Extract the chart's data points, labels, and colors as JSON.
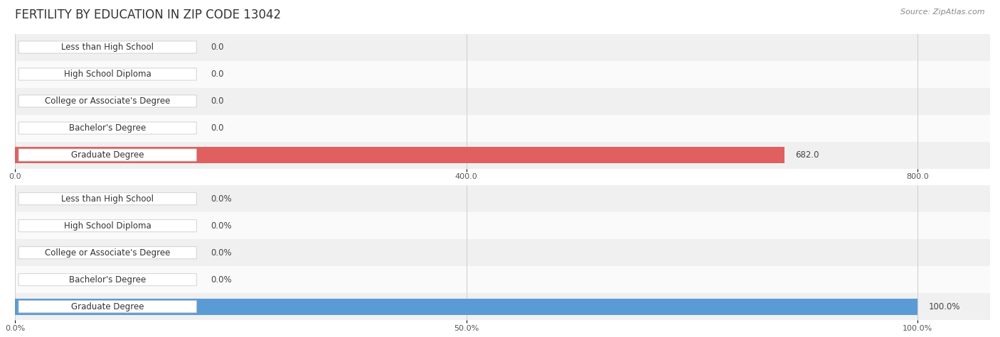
{
  "title": "FERTILITY BY EDUCATION IN ZIP CODE 13042",
  "source": "Source: ZipAtlas.com",
  "categories": [
    "Less than High School",
    "High School Diploma",
    "College or Associate's Degree",
    "Bachelor's Degree",
    "Graduate Degree"
  ],
  "values_abs": [
    0.0,
    0.0,
    0.0,
    0.0,
    682.0
  ],
  "values_pct": [
    0.0,
    0.0,
    0.0,
    0.0,
    100.0
  ],
  "xlim_abs": [
    0,
    800
  ],
  "xlim_pct": [
    0,
    100
  ],
  "xticks_abs": [
    0.0,
    400.0,
    800.0
  ],
  "xticks_pct": [
    0.0,
    50.0,
    100.0
  ],
  "bar_color_normal": "#f0b0ae",
  "bar_color_highlight": "#e06060",
  "bar_color_blue_normal": "#a8c8e8",
  "bar_color_blue_highlight": "#5b9bd5",
  "label_bg_color": "#ffffff",
  "row_bg_even": "#f0f0f0",
  "row_bg_odd": "#fafafa",
  "grid_color": "#d0d0d0",
  "title_fontsize": 12,
  "label_fontsize": 8.5,
  "tick_fontsize": 8,
  "source_fontsize": 8,
  "bar_height": 0.6,
  "figure_bg": "#ffffff"
}
